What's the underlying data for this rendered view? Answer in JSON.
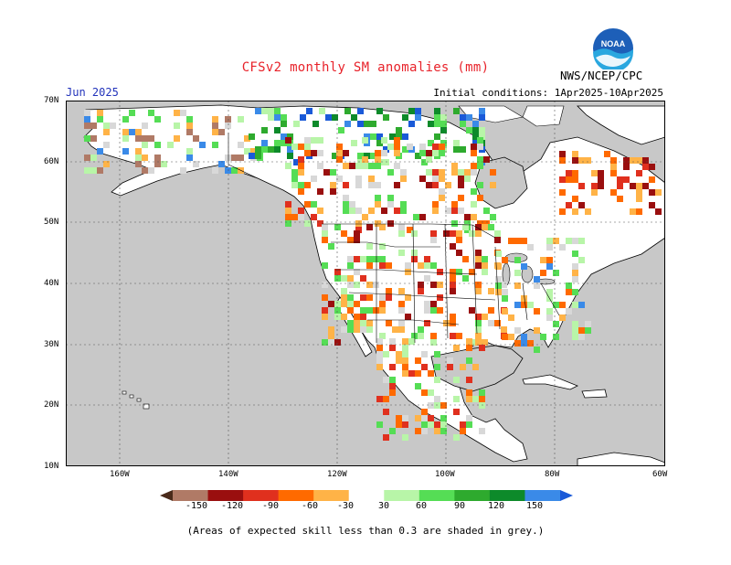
{
  "header": {
    "title": "CFSv2 monthly SM anomalies (mm)",
    "target_month": "Jun 2025",
    "initial_conditions": "Initial conditions: 1Apr2025-10Apr2025",
    "agency": "NWS/NCEP/CPC",
    "logo_text": "NOAA"
  },
  "axes": {
    "lat_labels": [
      "70N",
      "60N",
      "50N",
      "40N",
      "30N",
      "20N",
      "10N"
    ],
    "lon_labels": [
      "160W",
      "140W",
      "120W",
      "100W",
      "80W",
      "60W"
    ]
  },
  "colorbar": {
    "labels": [
      "-150",
      "-120",
      "-90",
      "-60",
      "-30",
      "30",
      "60",
      "90",
      "120",
      "150"
    ],
    "colors": [
      "#6e4a3a",
      "#b07a66",
      "#9a0f0f",
      "#e0301e",
      "#ff6a00",
      "#ffb347",
      "#ffffff",
      "#b8f5a8",
      "#55dd55",
      "#2eaa2e",
      "#0d8a2a",
      "#3a8ae8",
      "#1a5ad8"
    ]
  },
  "footnote": "(Areas of expected skill less than 0.3 are shaded in grey.)",
  "map_colors": {
    "ocean": "#c8c8c8",
    "land": "#ffffff",
    "low_skill": "#d8d8d8"
  }
}
